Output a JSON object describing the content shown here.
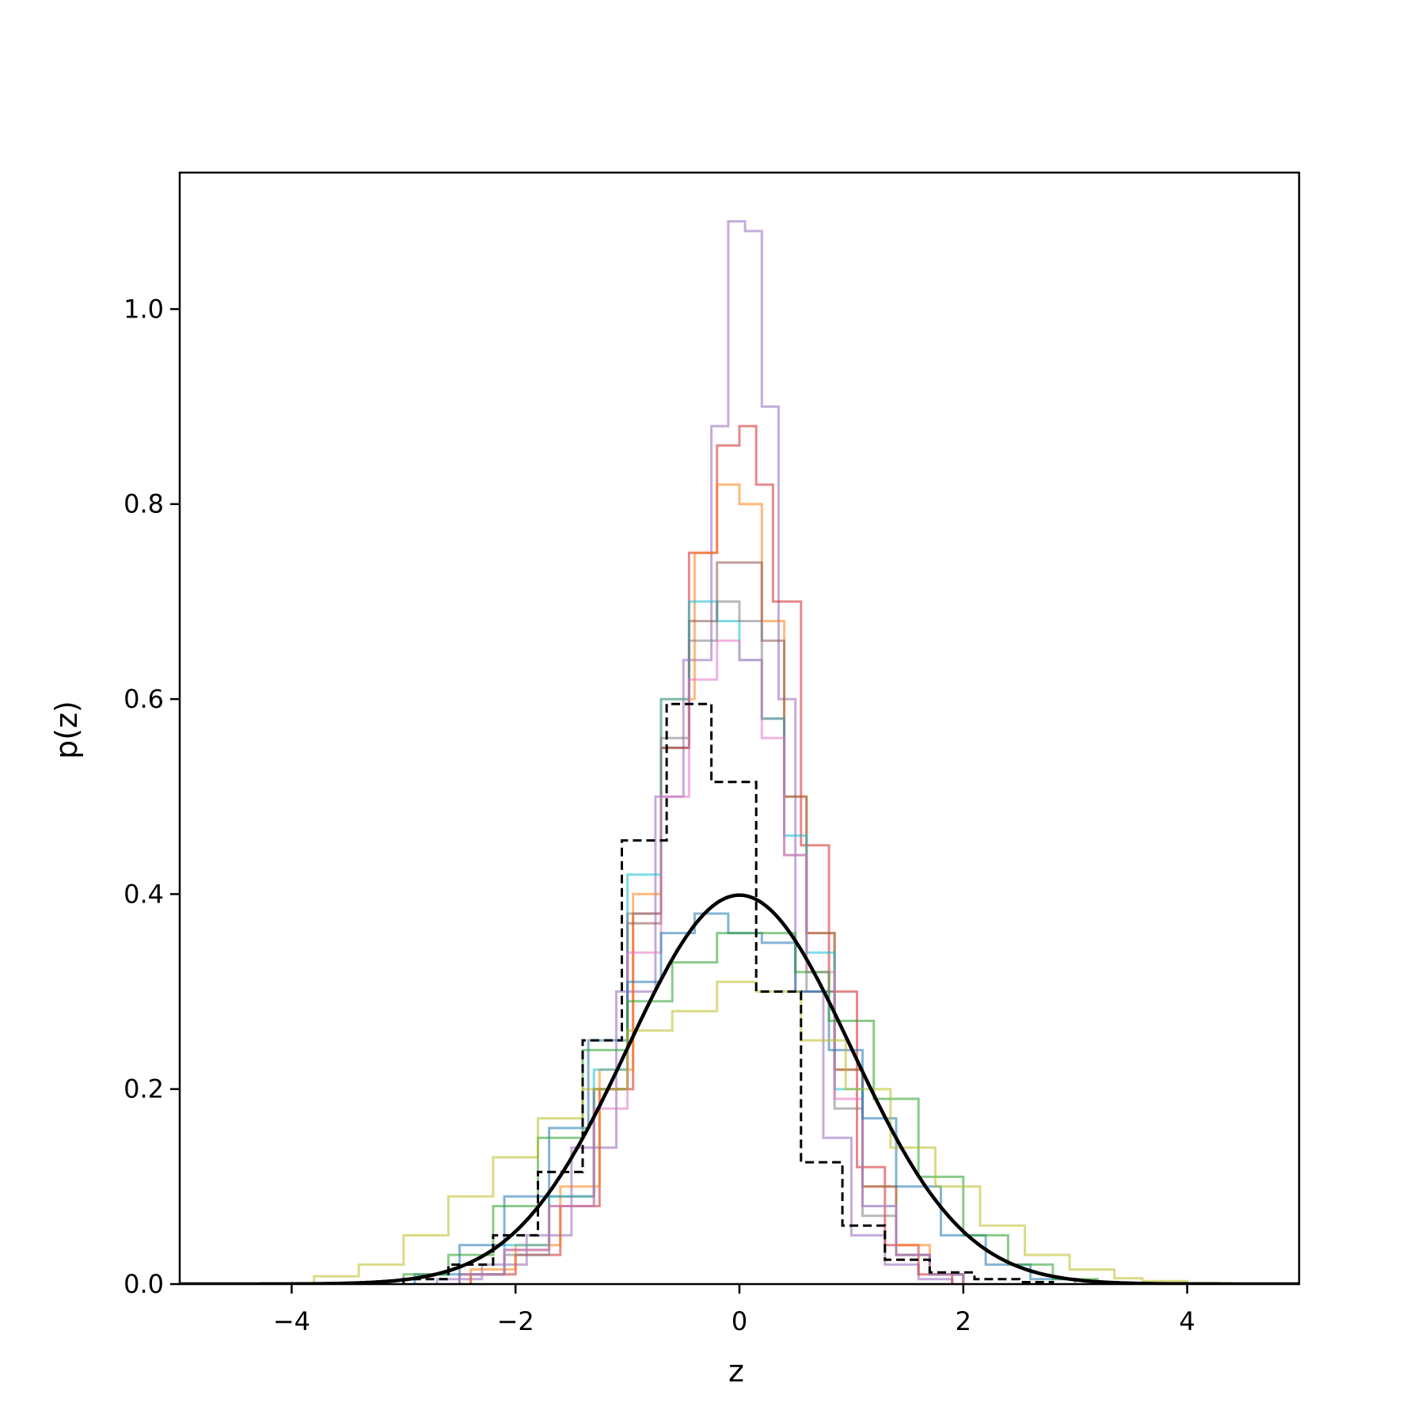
{
  "chart_data": {
    "type": "line",
    "title": "",
    "xlabel": "z",
    "ylabel": "p(z)",
    "xlim": [
      -5,
      5
    ],
    "ylim": [
      0,
      1.14
    ],
    "grid": false,
    "legend": "none",
    "xticks": [
      -4,
      -2,
      0,
      2,
      4
    ],
    "xtick_labels": [
      "−4",
      "−2",
      "0",
      "2",
      "4"
    ],
    "yticks": [
      0.0,
      0.2,
      0.4,
      0.6,
      0.8,
      1.0
    ],
    "ytick_labels": [
      "0.0",
      "0.2",
      "0.4",
      "0.6",
      "0.8",
      "1.0"
    ],
    "reference_curve": {
      "kind": "standard-normal-pdf",
      "mean": 0,
      "sd": 1,
      "x_range": [
        -5,
        5
      ],
      "color": "#000000",
      "style": "solid"
    },
    "reference_histogram": {
      "color": "#000000",
      "style": "dashed",
      "edges": [
        -3.0,
        -2.6,
        -2.2,
        -1.8,
        -1.4,
        -1.05,
        -0.65,
        -0.25,
        0.15,
        0.55,
        0.92,
        1.3,
        1.7,
        2.1,
        2.5,
        2.8
      ],
      "values": [
        0.005,
        0.02,
        0.05,
        0.115,
        0.25,
        0.455,
        0.595,
        0.515,
        0.3,
        0.125,
        0.06,
        0.025,
        0.012,
        0.005,
        0.002
      ]
    },
    "histograms": [
      {
        "color": "#9467bd",
        "edges": [
          -2.7,
          -2.3,
          -1.9,
          -1.5,
          -1.1,
          -0.75,
          -0.5,
          -0.25,
          -0.1,
          0.05,
          0.2,
          0.35,
          0.5,
          0.75,
          1.0,
          1.3,
          1.6,
          1.9
        ],
        "values": [
          0.005,
          0.02,
          0.05,
          0.14,
          0.3,
          0.5,
          0.64,
          0.88,
          1.09,
          1.08,
          0.9,
          0.6,
          0.3,
          0.15,
          0.05,
          0.02,
          0.005
        ]
      },
      {
        "color": "#d62728",
        "edges": [
          -2.4,
          -2.0,
          -1.6,
          -1.25,
          -0.95,
          -0.7,
          -0.45,
          -0.2,
          0.0,
          0.15,
          0.3,
          0.55,
          0.8,
          1.05,
          1.3,
          1.6,
          1.9
        ],
        "values": [
          0.01,
          0.03,
          0.08,
          0.2,
          0.38,
          0.55,
          0.75,
          0.86,
          0.88,
          0.82,
          0.7,
          0.45,
          0.3,
          0.12,
          0.04,
          0.01
        ]
      },
      {
        "color": "#ff7f0e",
        "edges": [
          -2.4,
          -2.0,
          -1.6,
          -1.25,
          -0.95,
          -0.7,
          -0.4,
          -0.2,
          0.0,
          0.2,
          0.4,
          0.6,
          0.85,
          1.1,
          1.4,
          1.7,
          2.0
        ],
        "values": [
          0.015,
          0.04,
          0.1,
          0.22,
          0.4,
          0.6,
          0.75,
          0.82,
          0.8,
          0.68,
          0.5,
          0.36,
          0.22,
          0.1,
          0.04,
          0.01
        ]
      },
      {
        "color": "#8c564b",
        "edges": [
          -2.5,
          -2.1,
          -1.7,
          -1.3,
          -1.0,
          -0.7,
          -0.45,
          -0.2,
          0.0,
          0.2,
          0.4,
          0.6,
          0.85,
          1.1,
          1.4,
          1.7,
          2.0
        ],
        "values": [
          0.01,
          0.035,
          0.09,
          0.2,
          0.37,
          0.55,
          0.68,
          0.74,
          0.74,
          0.66,
          0.5,
          0.36,
          0.22,
          0.1,
          0.03,
          0.01
        ]
      },
      {
        "color": "#17becf",
        "edges": [
          -2.5,
          -2.1,
          -1.7,
          -1.3,
          -1.0,
          -0.7,
          -0.45,
          -0.2,
          0.0,
          0.2,
          0.4,
          0.6,
          0.85,
          1.1,
          1.4,
          1.7,
          2.0
        ],
        "values": [
          0.01,
          0.04,
          0.09,
          0.22,
          0.42,
          0.6,
          0.7,
          0.68,
          0.64,
          0.58,
          0.46,
          0.34,
          0.2,
          0.08,
          0.03,
          0.01
        ]
      },
      {
        "color": "#7f7f7f",
        "edges": [
          -2.5,
          -2.1,
          -1.7,
          -1.3,
          -1.0,
          -0.7,
          -0.45,
          -0.2,
          0.0,
          0.2,
          0.4,
          0.6,
          0.85,
          1.1,
          1.4,
          1.7,
          2.0
        ],
        "values": [
          0.01,
          0.03,
          0.08,
          0.2,
          0.38,
          0.56,
          0.66,
          0.7,
          0.68,
          0.58,
          0.44,
          0.3,
          0.18,
          0.07,
          0.03,
          0.01
        ]
      },
      {
        "color": "#e377c2",
        "edges": [
          -2.5,
          -2.1,
          -1.7,
          -1.3,
          -1.0,
          -0.7,
          -0.45,
          -0.2,
          0.0,
          0.2,
          0.4,
          0.6,
          0.85,
          1.1,
          1.4,
          1.7,
          2.0
        ],
        "values": [
          0.01,
          0.035,
          0.08,
          0.18,
          0.34,
          0.5,
          0.62,
          0.66,
          0.64,
          0.56,
          0.44,
          0.32,
          0.19,
          0.08,
          0.03,
          0.01
        ]
      },
      {
        "color": "#1f77b4",
        "edges": [
          -2.9,
          -2.5,
          -2.1,
          -1.7,
          -1.35,
          -1.0,
          -0.7,
          -0.4,
          -0.1,
          0.2,
          0.5,
          0.8,
          1.1,
          1.4,
          1.8,
          2.2,
          2.6,
          3.0
        ],
        "values": [
          0.01,
          0.04,
          0.09,
          0.16,
          0.25,
          0.31,
          0.36,
          0.38,
          0.36,
          0.35,
          0.3,
          0.24,
          0.17,
          0.1,
          0.05,
          0.02,
          0.005
        ]
      },
      {
        "color": "#2ca02c",
        "edges": [
          -3.0,
          -2.6,
          -2.2,
          -1.8,
          -1.4,
          -1.0,
          -0.6,
          -0.2,
          0.2,
          0.5,
          0.8,
          1.2,
          1.6,
          2.0,
          2.4,
          2.8,
          3.2
        ],
        "values": [
          0.01,
          0.03,
          0.08,
          0.15,
          0.24,
          0.29,
          0.33,
          0.36,
          0.36,
          0.32,
          0.27,
          0.19,
          0.11,
          0.05,
          0.02,
          0.005
        ]
      },
      {
        "color": "#bcbd22",
        "edges": [
          -3.8,
          -3.4,
          -3.0,
          -2.6,
          -2.2,
          -1.8,
          -1.4,
          -1.0,
          -0.6,
          -0.2,
          0.15,
          0.55,
          0.95,
          1.35,
          1.75,
          2.15,
          2.55,
          2.95,
          3.35,
          3.6,
          4.0,
          4.4
        ],
        "values": [
          0.008,
          0.02,
          0.05,
          0.09,
          0.13,
          0.17,
          0.2,
          0.26,
          0.28,
          0.31,
          0.3,
          0.25,
          0.2,
          0.14,
          0.1,
          0.06,
          0.03,
          0.015,
          0.006,
          0.003,
          0.001
        ]
      }
    ]
  }
}
